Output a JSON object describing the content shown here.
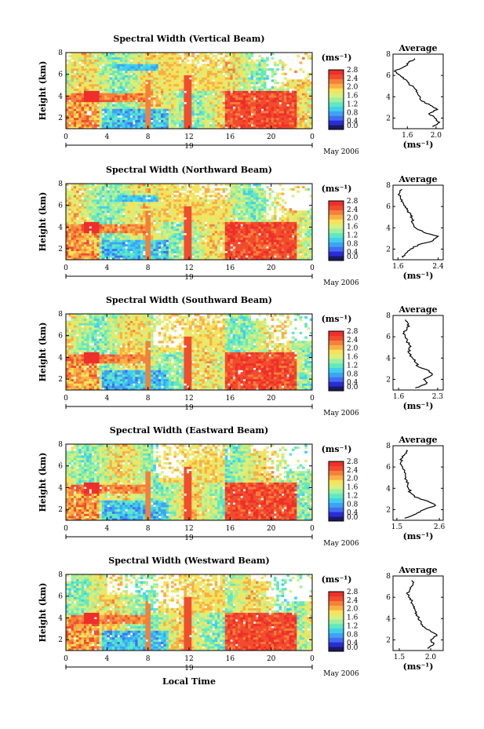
{
  "figure": {
    "xaxis_label": "Local Time",
    "day_label": "19",
    "month_label": "May 2006",
    "colorbar_unit": "(ms⁻¹)",
    "avg_unit": "(ms⁻¹)",
    "avg_title": "Average",
    "ylabel": "Height (km)"
  },
  "colors": {
    "scale": [
      "#1a1a60",
      "#2b2bd8",
      "#3f6ff0",
      "#3fa2f5",
      "#3fd0ee",
      "#62e8c0",
      "#9ff0a0",
      "#d8f07e",
      "#f7e25a",
      "#f8b045",
      "#f5803a",
      "#f24c2f",
      "#ee2f2a"
    ]
  },
  "chart_data": [
    {
      "type": "heatmap",
      "title": "Spectral Width (Vertical Beam)",
      "xlabel": "",
      "ylabel": "Height (km)",
      "xlim": [
        0,
        24
      ],
      "ylim": [
        1,
        8
      ],
      "x_ticks": [
        "0",
        "4",
        "8",
        "12",
        "16",
        "20",
        "0"
      ],
      "y_ticks": [
        "2",
        "4",
        "6",
        "8"
      ],
      "colorbar_ticks": [
        "0.0",
        "0.4",
        "0.8",
        "1.2",
        "1.6",
        "2.0",
        "2.4",
        "2.8"
      ],
      "colorbar_range": [
        0.0,
        2.8
      ],
      "average_profile": {
        "x_ticks": [
          "1.6",
          "2.0"
        ],
        "xlim": [
          1.4,
          2.1
        ],
        "height_km": [
          1.2,
          1.6,
          2.0,
          2.4,
          2.8,
          3.2,
          3.6,
          4.0,
          4.4,
          4.8,
          5.2,
          5.6,
          6.0,
          6.4,
          6.8,
          7.2,
          7.6
        ],
        "values": [
          1.95,
          2.05,
          1.98,
          1.9,
          2.02,
          1.92,
          1.8,
          1.78,
          1.74,
          1.7,
          1.62,
          1.58,
          1.5,
          1.42,
          1.55,
          1.62,
          1.7
        ]
      }
    },
    {
      "type": "heatmap",
      "title": "Spectral Width (Northward Beam)",
      "xlabel": "",
      "ylabel": "Height (km)",
      "xlim": [
        0,
        24
      ],
      "ylim": [
        1,
        8
      ],
      "x_ticks": [
        "0",
        "4",
        "8",
        "12",
        "16",
        "20",
        "0"
      ],
      "y_ticks": [
        "2",
        "4",
        "6",
        "8"
      ],
      "colorbar_ticks": [
        "0.0",
        "0.4",
        "0.8",
        "1.2",
        "1.6",
        "2.0",
        "2.4",
        "2.8"
      ],
      "colorbar_range": [
        0.0,
        2.8
      ],
      "average_profile": {
        "x_ticks": [
          "1.6",
          "2.4"
        ],
        "xlim": [
          1.5,
          2.5
        ],
        "height_km": [
          1.2,
          1.6,
          2.0,
          2.4,
          2.8,
          3.2,
          3.6,
          4.0,
          4.4,
          4.8,
          5.2,
          5.6,
          6.0,
          6.4,
          6.8,
          7.2,
          7.6
        ],
        "values": [
          1.7,
          1.75,
          1.85,
          2.0,
          2.3,
          2.4,
          2.1,
          1.95,
          1.9,
          1.88,
          1.85,
          1.8,
          1.75,
          1.7,
          1.65,
          1.62,
          1.68
        ]
      }
    },
    {
      "type": "heatmap",
      "title": "Spectral Width (Southward Beam)",
      "xlabel": "",
      "ylabel": "Height (km)",
      "xlim": [
        0,
        24
      ],
      "ylim": [
        1,
        8
      ],
      "x_ticks": [
        "0",
        "4",
        "8",
        "12",
        "16",
        "20",
        "0"
      ],
      "y_ticks": [
        "2",
        "4",
        "6",
        "8"
      ],
      "colorbar_ticks": [
        "0.0",
        "0.4",
        "0.8",
        "1.2",
        "1.6",
        "2.0",
        "2.4",
        "2.8"
      ],
      "colorbar_range": [
        0.0,
        2.8
      ],
      "average_profile": {
        "x_ticks": [
          "1.6",
          "2.3"
        ],
        "xlim": [
          1.5,
          2.4
        ],
        "height_km": [
          1.2,
          1.6,
          2.0,
          2.4,
          2.8,
          3.2,
          3.6,
          4.0,
          4.4,
          4.8,
          5.2,
          5.6,
          6.0,
          6.4,
          6.8,
          7.2,
          7.6
        ],
        "values": [
          1.9,
          2.1,
          2.05,
          2.2,
          2.15,
          1.95,
          1.9,
          1.85,
          1.8,
          1.78,
          1.8,
          1.75,
          1.72,
          1.7,
          1.75,
          1.78,
          1.72
        ]
      }
    },
    {
      "type": "heatmap",
      "title": "Spectral Width (Eastward Beam)",
      "xlabel": "",
      "ylabel": "Height (km)",
      "xlim": [
        0,
        24
      ],
      "ylim": [
        1,
        8
      ],
      "x_ticks": [
        "0",
        "4",
        "8",
        "12",
        "16",
        "20",
        "0"
      ],
      "y_ticks": [
        "2",
        "4",
        "6",
        "8"
      ],
      "colorbar_ticks": [
        "0.0",
        "0.4",
        "0.8",
        "1.2",
        "1.6",
        "2.0",
        "2.4",
        "2.8"
      ],
      "colorbar_range": [
        0.0,
        2.8
      ],
      "average_profile": {
        "x_ticks": [
          "1.5",
          "2.6"
        ],
        "xlim": [
          1.4,
          2.7
        ],
        "height_km": [
          1.2,
          1.6,
          2.0,
          2.4,
          2.8,
          3.2,
          3.6,
          4.0,
          4.4,
          4.8,
          5.2,
          5.6,
          6.0,
          6.4,
          6.8,
          7.2,
          7.6
        ],
        "values": [
          1.7,
          2.0,
          2.2,
          2.5,
          2.3,
          1.95,
          1.85,
          1.8,
          1.78,
          1.75,
          1.72,
          1.7,
          1.65,
          1.6,
          1.62,
          1.7,
          1.75
        ]
      }
    },
    {
      "type": "heatmap",
      "title": "Spectral Width (Westward Beam)",
      "xlabel": "Local Time",
      "ylabel": "Height (km)",
      "xlim": [
        0,
        24
      ],
      "ylim": [
        1,
        8
      ],
      "x_ticks": [
        "0",
        "4",
        "8",
        "12",
        "16",
        "20",
        "0"
      ],
      "y_ticks": [
        "2",
        "4",
        "6",
        "8"
      ],
      "colorbar_ticks": [
        "0.0",
        "0.4",
        "0.8",
        "1.2",
        "1.6",
        "2.0",
        "2.4",
        "2.8"
      ],
      "colorbar_range": [
        0.0,
        2.8
      ],
      "average_profile": {
        "x_ticks": [
          "1.5",
          "2.0"
        ],
        "xlim": [
          1.4,
          2.2
        ],
        "height_km": [
          1.2,
          1.6,
          2.0,
          2.4,
          2.8,
          3.2,
          3.6,
          4.0,
          4.4,
          4.8,
          5.2,
          5.6,
          6.0,
          6.4,
          6.8,
          7.2,
          7.6
        ],
        "values": [
          1.95,
          2.05,
          2.0,
          2.1,
          2.0,
          1.9,
          1.85,
          1.8,
          1.78,
          1.75,
          1.72,
          1.7,
          1.65,
          1.62,
          1.68,
          1.72,
          1.7
        ]
      }
    }
  ]
}
